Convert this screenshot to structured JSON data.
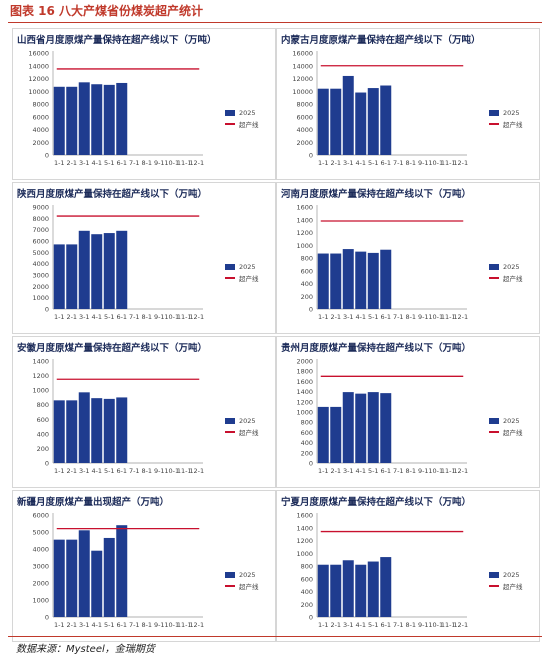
{
  "figure_title": "图表 16  八大产煤省份煤炭超产统计",
  "source": "数据来源：Mysteel，金瑞期货",
  "colors": {
    "bar": "#1f3c8f",
    "cap_line": "#c8102e",
    "accent": "#c0392b"
  },
  "chart_data": [
    {
      "type": "bar",
      "title": "山西省月度原煤产量保持在超产线以下（万吨）",
      "categories": [
        "1-1",
        "2-1",
        "3-1",
        "4-1",
        "5-1",
        "6-1",
        "7-1",
        "8-1",
        "9-1",
        "10-1",
        "11-1",
        "12-1"
      ],
      "series": [
        {
          "name": "2025",
          "values": [
            10700,
            10700,
            11400,
            11100,
            11000,
            11300,
            null,
            null,
            null,
            null,
            null,
            null
          ]
        },
        {
          "name": "超产线",
          "type": "line",
          "values": [
            13500,
            13500,
            13500,
            13500,
            13500,
            13500,
            13500,
            13500,
            13500,
            13500,
            13500,
            13500
          ]
        }
      ],
      "ylim": [
        0,
        16000
      ],
      "yticks": [
        0,
        2000,
        4000,
        6000,
        8000,
        10000,
        12000,
        14000,
        16000
      ],
      "legend": "right"
    },
    {
      "type": "bar",
      "title": "内蒙古月度原煤产量保持在超产线以下（万吨）",
      "categories": [
        "1-1",
        "2-1",
        "3-1",
        "4-1",
        "5-1",
        "6-1",
        "7-1",
        "8-1",
        "9-1",
        "10-1",
        "11-1",
        "12-1"
      ],
      "series": [
        {
          "name": "2025",
          "values": [
            10400,
            10400,
            12400,
            9800,
            10500,
            10900,
            null,
            null,
            null,
            null,
            null,
            null
          ]
        },
        {
          "name": "超产线",
          "type": "line",
          "values": [
            14000,
            14000,
            14000,
            14000,
            14000,
            14000,
            14000,
            14000,
            14000,
            14000,
            14000,
            14000
          ]
        }
      ],
      "ylim": [
        0,
        16000
      ],
      "yticks": [
        0,
        2000,
        4000,
        6000,
        8000,
        10000,
        12000,
        14000,
        16000
      ],
      "legend": "right"
    },
    {
      "type": "bar",
      "title": "陕西月度原煤产量保持在超产线以下（万吨）",
      "categories": [
        "1-1",
        "2-1",
        "3-1",
        "4-1",
        "5-1",
        "6-1",
        "7-1",
        "8-1",
        "9-1",
        "10-1",
        "11-1",
        "12-1"
      ],
      "series": [
        {
          "name": "2025",
          "values": [
            5700,
            5700,
            6900,
            6600,
            6700,
            6900,
            null,
            null,
            null,
            null,
            null,
            null
          ]
        },
        {
          "name": "超产线",
          "type": "line",
          "values": [
            8200,
            8200,
            8200,
            8200,
            8200,
            8200,
            8200,
            8200,
            8200,
            8200,
            8200,
            8200
          ]
        }
      ],
      "ylim": [
        0,
        9000
      ],
      "yticks": [
        0,
        1000,
        2000,
        3000,
        4000,
        5000,
        6000,
        7000,
        8000,
        9000
      ],
      "legend": "right"
    },
    {
      "type": "bar",
      "title": "河南月度原煤产量保持在超产线以下（万吨）",
      "categories": [
        "1-1",
        "2-1",
        "3-1",
        "4-1",
        "5-1",
        "6-1",
        "7-1",
        "8-1",
        "9-1",
        "10-1",
        "11-1",
        "12-1"
      ],
      "series": [
        {
          "name": "2025",
          "values": [
            870,
            870,
            940,
            900,
            880,
            930,
            null,
            null,
            null,
            null,
            null,
            null
          ]
        },
        {
          "name": "超产线",
          "type": "line",
          "values": [
            1380,
            1380,
            1380,
            1380,
            1380,
            1380,
            1380,
            1380,
            1380,
            1380,
            1380,
            1380
          ]
        }
      ],
      "ylim": [
        0,
        1600
      ],
      "yticks": [
        0,
        200,
        400,
        600,
        800,
        1000,
        1200,
        1400,
        1600
      ],
      "legend": "right"
    },
    {
      "type": "bar",
      "title": "安徽月度原煤产量保持在超产线以下（万吨）",
      "categories": [
        "1-1",
        "2-1",
        "3-1",
        "4-1",
        "5-1",
        "6-1",
        "7-1",
        "8-1",
        "9-1",
        "10-1",
        "11-1",
        "12-1"
      ],
      "series": [
        {
          "name": "2025",
          "values": [
            860,
            860,
            970,
            890,
            880,
            900,
            null,
            null,
            null,
            null,
            null,
            null
          ]
        },
        {
          "name": "超产线",
          "type": "line",
          "values": [
            1150,
            1150,
            1150,
            1150,
            1150,
            1150,
            1150,
            1150,
            1150,
            1150,
            1150,
            1150
          ]
        }
      ],
      "ylim": [
        0,
        1400
      ],
      "yticks": [
        0,
        200,
        400,
        600,
        800,
        1000,
        1200,
        1400
      ],
      "legend": "right"
    },
    {
      "type": "bar",
      "title": "贵州月度原煤产量保持在超产线以下（万吨）",
      "categories": [
        "1-1",
        "2-1",
        "3-1",
        "4-1",
        "5-1",
        "6-1",
        "7-1",
        "8-1",
        "9-1",
        "10-1",
        "11-1",
        "12-1"
      ],
      "series": [
        {
          "name": "2025",
          "values": [
            1100,
            1100,
            1390,
            1360,
            1390,
            1370,
            null,
            null,
            null,
            null,
            null,
            null
          ]
        },
        {
          "name": "超产线",
          "type": "line",
          "values": [
            1700,
            1700,
            1700,
            1700,
            1700,
            1700,
            1700,
            1700,
            1700,
            1700,
            1700,
            1700
          ]
        }
      ],
      "ylim": [
        0,
        2000
      ],
      "yticks": [
        0,
        200,
        400,
        600,
        800,
        1000,
        1200,
        1400,
        1600,
        1800,
        2000
      ],
      "legend": "right"
    },
    {
      "type": "bar",
      "title": "新疆月度原煤产量出现超产（万吨）",
      "categories": [
        "1-1",
        "2-1",
        "3-1",
        "4-1",
        "5-1",
        "6-1",
        "7-1",
        "8-1",
        "9-1",
        "10-1",
        "11-1",
        "12-1"
      ],
      "series": [
        {
          "name": "2025",
          "values": [
            4550,
            4550,
            5100,
            3900,
            4650,
            5400,
            null,
            null,
            null,
            null,
            null,
            null
          ]
        },
        {
          "name": "超产线",
          "type": "line",
          "values": [
            5200,
            5200,
            5200,
            5200,
            5200,
            5200,
            5200,
            5200,
            5200,
            5200,
            5200,
            5200
          ]
        }
      ],
      "ylim": [
        0,
        6000
      ],
      "yticks": [
        0,
        1000,
        2000,
        3000,
        4000,
        5000,
        6000
      ],
      "legend": "right"
    },
    {
      "type": "bar",
      "title": "宁夏月度原煤产量保持在超产线以下（万吨）",
      "categories": [
        "1-1",
        "2-1",
        "3-1",
        "4-1",
        "5-1",
        "6-1",
        "7-1",
        "8-1",
        "9-1",
        "10-1",
        "11-1",
        "12-1"
      ],
      "series": [
        {
          "name": "2025",
          "values": [
            820,
            820,
            890,
            820,
            870,
            940,
            null,
            null,
            null,
            null,
            null,
            null
          ]
        },
        {
          "name": "超产线",
          "type": "line",
          "values": [
            1340,
            1340,
            1340,
            1340,
            1340,
            1340,
            1340,
            1340,
            1340,
            1340,
            1340,
            1340
          ]
        }
      ],
      "ylim": [
        0,
        1600
      ],
      "yticks": [
        0,
        200,
        400,
        600,
        800,
        1000,
        1200,
        1400,
        1600
      ],
      "legend": "right"
    }
  ]
}
